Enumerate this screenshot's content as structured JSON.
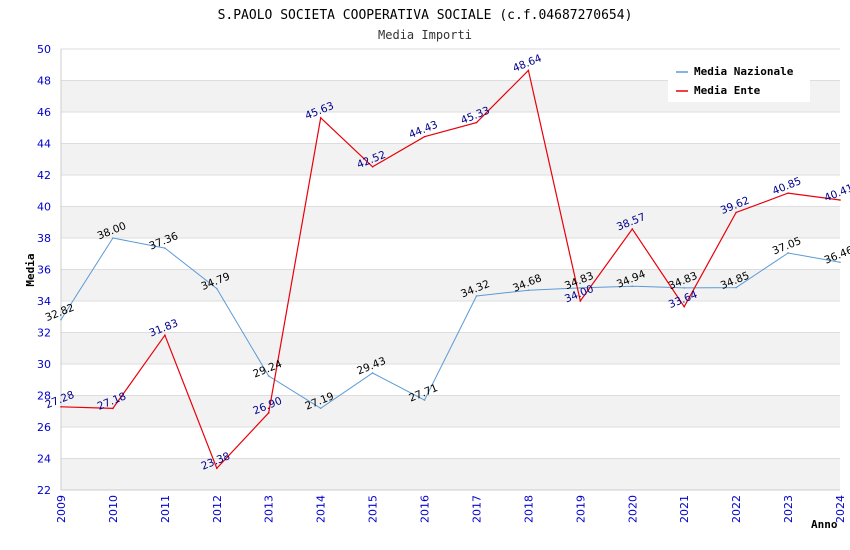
{
  "chart_data": {
    "type": "line",
    "title": "S.PAOLO SOCIETA COOPERATIVA SOCIALE (c.f.04687270654)",
    "subtitle": "Media Importi",
    "xlabel": "Anno",
    "ylabel": "Media",
    "ylim": [
      22,
      50
    ],
    "yticks": [
      "22",
      "24",
      "26",
      "28",
      "30",
      "32",
      "34",
      "36",
      "38",
      "40",
      "42",
      "44",
      "46",
      "48",
      "50"
    ],
    "x": [
      "2009",
      "2010",
      "2011",
      "2012",
      "2013",
      "2014",
      "2015",
      "2016",
      "2017",
      "2018",
      "2019",
      "2020",
      "2021",
      "2022",
      "2023",
      "2024"
    ],
    "grid": true,
    "legend_position": "top-right",
    "series": [
      {
        "name": "Media Nazionale",
        "color": "#5b9bd5",
        "label_color": "#000000",
        "values": [
          32.82,
          38.0,
          37.36,
          34.79,
          29.24,
          27.19,
          29.43,
          27.71,
          34.32,
          34.68,
          34.83,
          34.94,
          34.83,
          34.85,
          37.05,
          36.46
        ],
        "labels": [
          "32.82",
          "38.00",
          "37.36",
          "34.79",
          "29.24",
          "27.19",
          "29.43",
          "27.71",
          "34.32",
          "34.68",
          "34.83",
          "34.94",
          "34.83",
          "34.85",
          "37.05",
          "36.46"
        ]
      },
      {
        "name": "Media Ente",
        "color": "#e8000b",
        "label_color": "#00008b",
        "values": [
          27.28,
          27.18,
          31.83,
          23.38,
          26.9,
          45.63,
          42.52,
          44.43,
          45.33,
          48.64,
          34.0,
          38.57,
          33.64,
          39.62,
          40.85,
          40.41
        ],
        "labels": [
          "27.28",
          "27.18",
          "31.83",
          "23.38",
          "26.90",
          "45.63",
          "42.52",
          "44.43",
          "45.33",
          "48.64",
          "34.00",
          "38.57",
          "33.64",
          "39.62",
          "40.85",
          "40.41"
        ]
      }
    ]
  }
}
